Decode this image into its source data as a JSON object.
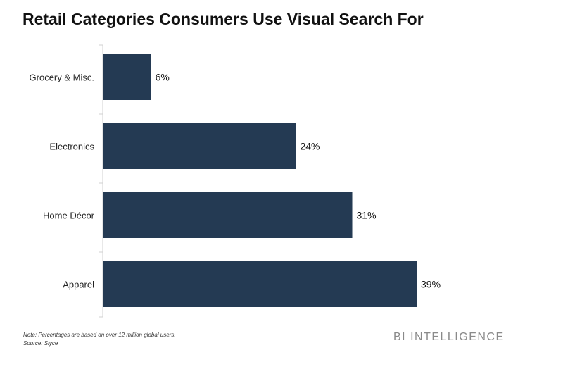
{
  "chart_data": {
    "type": "bar",
    "orientation": "horizontal",
    "title": "Retail Categories Consumers Use Visual Search For",
    "categories": [
      "Grocery & Misc.",
      "Electronics",
      "Home Décor",
      "Apparel"
    ],
    "values": [
      6,
      24,
      31,
      39
    ],
    "value_labels": [
      "6%",
      "24%",
      "31%",
      "39%"
    ],
    "xlim": [
      0,
      45
    ],
    "bar_color": "#243a53",
    "grid": false,
    "legend": "none"
  },
  "footer": {
    "note": "Note: Percentages are based on over 12 million global users.",
    "source": "Source: Slyce",
    "brand": "BI INTELLIGENCE"
  }
}
